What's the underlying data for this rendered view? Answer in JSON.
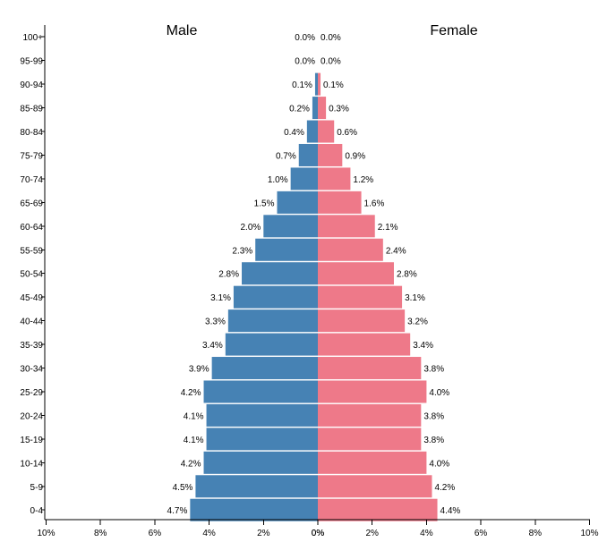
{
  "chart_data": {
    "type": "bar",
    "orientation": "horizontal-pyramid",
    "categories": [
      "0-4",
      "5-9",
      "10-14",
      "15-19",
      "20-24",
      "25-29",
      "30-34",
      "35-39",
      "40-44",
      "45-49",
      "50-54",
      "55-59",
      "60-64",
      "65-69",
      "70-74",
      "75-79",
      "80-84",
      "85-89",
      "90-94",
      "95-99",
      "100+"
    ],
    "series": [
      {
        "name": "Male",
        "color": "#4682b4",
        "values": [
          4.7,
          4.5,
          4.2,
          4.1,
          4.1,
          4.2,
          3.9,
          3.4,
          3.3,
          3.1,
          2.8,
          2.3,
          2.0,
          1.5,
          1.0,
          0.7,
          0.4,
          0.2,
          0.1,
          0.0,
          0.0
        ],
        "labels": [
          "4.7%",
          "4.5%",
          "4.2%",
          "4.1%",
          "4.1%",
          "4.2%",
          "3.9%",
          "3.4%",
          "3.3%",
          "3.1%",
          "2.8%",
          "2.3%",
          "2.0%",
          "1.5%",
          "1.0%",
          "0.7%",
          "0.4%",
          "0.2%",
          "0.1%",
          "0.0%",
          "0.0%"
        ]
      },
      {
        "name": "Female",
        "color": "#ee7989",
        "values": [
          4.4,
          4.2,
          4.0,
          3.8,
          3.8,
          4.0,
          3.8,
          3.4,
          3.2,
          3.1,
          2.8,
          2.4,
          2.1,
          1.6,
          1.2,
          0.9,
          0.6,
          0.3,
          0.1,
          0.0,
          0.0
        ],
        "labels": [
          "4.4%",
          "4.2%",
          "4.0%",
          "3.8%",
          "3.8%",
          "4.0%",
          "3.8%",
          "3.4%",
          "3.2%",
          "3.1%",
          "2.8%",
          "2.4%",
          "2.1%",
          "1.6%",
          "1.2%",
          "0.9%",
          "0.6%",
          "0.3%",
          "0.1%",
          "0.0%",
          "0.0%"
        ]
      }
    ],
    "x_ticks_left": [
      "10%",
      "8%",
      "6%",
      "4%",
      "2%",
      "0%"
    ],
    "x_ticks_right": [
      "0%",
      "2%",
      "4%",
      "6%",
      "8%",
      "10%"
    ],
    "xlim": [
      0,
      10
    ],
    "grid": false
  }
}
